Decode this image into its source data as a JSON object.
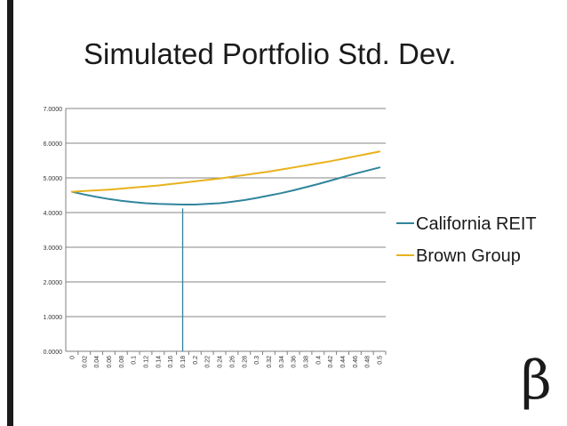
{
  "slide": {
    "title": "Simulated Portfolio Std. Dev.",
    "logo_symbol": "β"
  },
  "chart_data": {
    "type": "line",
    "title": "",
    "xlabel": "",
    "ylabel": "",
    "ylim": [
      0,
      7
    ],
    "y_ticks": [
      "0.0000",
      "1.0000",
      "2.0000",
      "3.0000",
      "4.0000",
      "5.0000",
      "6.0000",
      "7.0000"
    ],
    "y_tick_values": [
      0,
      1,
      2,
      3,
      4,
      5,
      6,
      7
    ],
    "x": [
      "0",
      "0.02",
      "0.04",
      "0.06",
      "0.08",
      "0.1",
      "0.12",
      "0.14",
      "0.16",
      "0.18",
      "0.2",
      "0.22",
      "0.24",
      "0.26",
      "0.28",
      "0.3",
      "0.32",
      "0.34",
      "0.36",
      "0.38",
      "0.4",
      "0.42",
      "0.44",
      "0.46",
      "0.48",
      "0.5"
    ],
    "grid": true,
    "legend_position": "right",
    "series": [
      {
        "name": "California REIT",
        "color": "#31859C",
        "values": [
          4.6,
          4.52,
          4.45,
          4.39,
          4.34,
          4.3,
          4.27,
          4.25,
          4.24,
          4.23,
          4.23,
          4.25,
          4.27,
          4.31,
          4.36,
          4.42,
          4.49,
          4.56,
          4.64,
          4.73,
          4.82,
          4.92,
          5.02,
          5.12,
          5.21,
          5.3
        ]
      },
      {
        "name": "Brown Group",
        "color": "#E8B21C",
        "values": [
          4.6,
          4.62,
          4.64,
          4.66,
          4.69,
          4.72,
          4.75,
          4.78,
          4.82,
          4.86,
          4.9,
          4.94,
          4.98,
          5.03,
          5.08,
          5.13,
          5.18,
          5.24,
          5.3,
          5.36,
          5.42,
          5.48,
          5.55,
          5.62,
          5.69,
          5.76
        ]
      }
    ],
    "marker_line": {
      "x": "0.18",
      "y_top": 4.12,
      "color": "#31859C"
    }
  }
}
